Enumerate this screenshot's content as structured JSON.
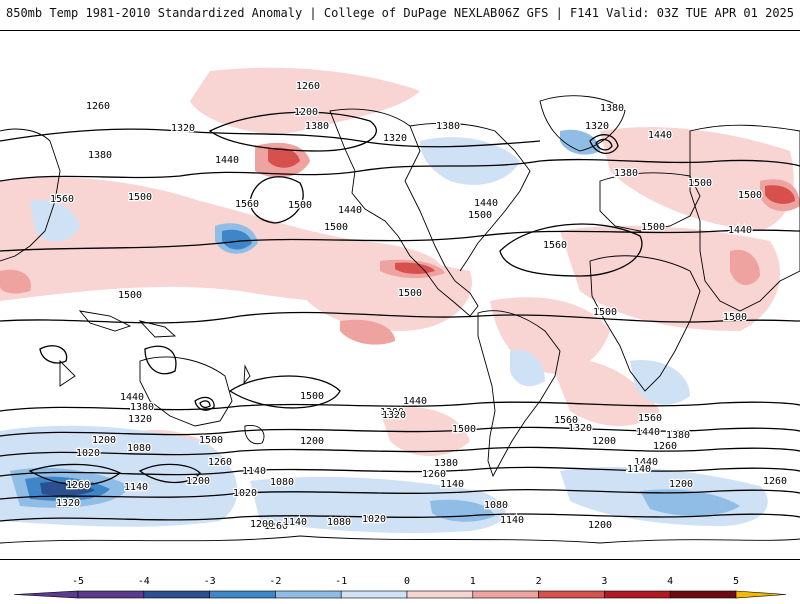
{
  "header": {
    "title": "850mb Temp 1981-2010 Standardized Anomaly | College of DuPage NEXLAB",
    "run_info": "06Z GFS | F141 Valid: 03Z TUE APR 01 2025"
  },
  "colors": {
    "neg5": "#5b3a8f",
    "neg4": "#2c4f8f",
    "neg3": "#3f86c9",
    "neg2": "#8fbde6",
    "neg1": "#cfe2f5",
    "zero": "#ffffff",
    "pos1": "#f8d4d2",
    "pos2": "#eea3a0",
    "pos3": "#d6504e",
    "pos4": "#b11a22",
    "pos5": "#6e0a10",
    "over": "#f5b800",
    "contour": "#000000",
    "coast": "#000000"
  },
  "colorbar": {
    "ticks": [
      "-5",
      "-4",
      "-3",
      "-2",
      "-1",
      "0",
      "1",
      "2",
      "3",
      "4",
      "5"
    ]
  },
  "contour_labels": [
    {
      "t": "1260"
    },
    {
      "t": "1260"
    },
    {
      "t": "1200"
    },
    {
      "t": "1380"
    },
    {
      "t": "1320"
    },
    {
      "t": "1320"
    },
    {
      "t": "1380"
    },
    {
      "t": "1380"
    },
    {
      "t": "1380"
    },
    {
      "t": "1320"
    },
    {
      "t": "1440"
    },
    {
      "t": "1440"
    },
    {
      "t": "1380"
    },
    {
      "t": "1560"
    },
    {
      "t": "1500"
    },
    {
      "t": "1560"
    },
    {
      "t": "1500"
    },
    {
      "t": "1440"
    },
    {
      "t": "1500"
    },
    {
      "t": "1440"
    },
    {
      "t": "1500"
    },
    {
      "t": "1500"
    },
    {
      "t": "1560"
    },
    {
      "t": "1500"
    },
    {
      "t": "1500"
    },
    {
      "t": "1440"
    },
    {
      "t": "1500"
    },
    {
      "t": "1500"
    },
    {
      "t": "1500"
    },
    {
      "t": "1500"
    },
    {
      "t": "1500"
    },
    {
      "t": "1560"
    },
    {
      "t": "1440"
    },
    {
      "t": "1380"
    },
    {
      "t": "1320"
    },
    {
      "t": "1440"
    },
    {
      "t": "1380"
    },
    {
      "t": "1320"
    },
    {
      "t": "1200"
    },
    {
      "t": "1080"
    },
    {
      "t": "1020"
    },
    {
      "t": "1500"
    },
    {
      "t": "1260"
    },
    {
      "t": "1200"
    },
    {
      "t": "1140"
    },
    {
      "t": "1080"
    },
    {
      "t": "1020"
    },
    {
      "t": "1260"
    },
    {
      "t": "1320"
    },
    {
      "t": "1140"
    },
    {
      "t": "1200"
    },
    {
      "t": "1380"
    },
    {
      "t": "1260"
    },
    {
      "t": "1140"
    },
    {
      "t": "1440"
    },
    {
      "t": "1320"
    },
    {
      "t": "1200"
    },
    {
      "t": "1260"
    },
    {
      "t": "1440"
    },
    {
      "t": "1380"
    },
    {
      "t": "1140"
    },
    {
      "t": "1560"
    },
    {
      "t": "1500"
    },
    {
      "t": "1140"
    },
    {
      "t": "1200"
    },
    {
      "t": "1260"
    },
    {
      "t": "1080"
    },
    {
      "t": "1260"
    },
    {
      "t": "1200"
    },
    {
      "t": "1140"
    },
    {
      "t": "1080"
    },
    {
      "t": "1020"
    },
    {
      "t": "1140"
    },
    {
      "t": "1200"
    }
  ]
}
